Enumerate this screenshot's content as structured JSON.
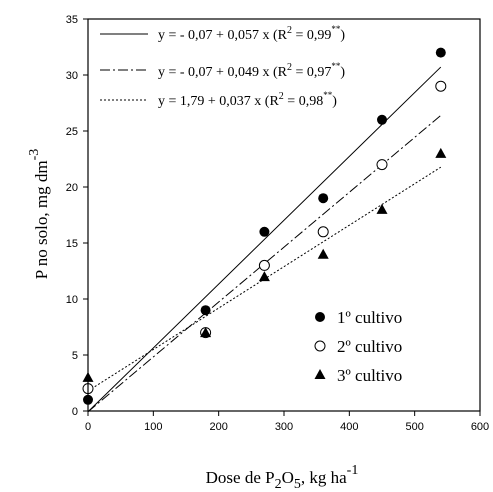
{
  "chart_data": {
    "type": "scatter",
    "xlabel": {
      "pre": "Dose de P",
      "sub1": "2",
      "mid": "O",
      "sub2": "5",
      "post": ", kg ha",
      "sup": "-1"
    },
    "ylabel": {
      "main": "P no solo, mg dm",
      "sup": "-3"
    },
    "xlim": [
      0,
      600
    ],
    "ylim": [
      0,
      35
    ],
    "xticks": [
      0,
      100,
      200,
      300,
      400,
      500,
      600
    ],
    "yticks": [
      0,
      5,
      10,
      15,
      20,
      25,
      30,
      35
    ],
    "x": [
      0,
      180,
      270,
      360,
      450,
      540
    ],
    "series": [
      {
        "name": "1º cultivo",
        "marker": "filled-circle",
        "line": "solid",
        "values": [
          1,
          9,
          16,
          19,
          26,
          32
        ],
        "fit": {
          "intercept": -0.07,
          "slope": 0.057
        },
        "equation": {
          "main": "y = - 0,07 + 0,057 x (R",
          "sq": "2",
          "mid": " = 0,99",
          "sig": "**",
          "end": ")"
        }
      },
      {
        "name": "2º cultivo",
        "marker": "open-circle",
        "line": "dash-dot",
        "values": [
          2,
          7,
          13,
          16,
          22,
          29
        ],
        "fit": {
          "intercept": -0.07,
          "slope": 0.049
        },
        "equation": {
          "main": "y = - 0,07 + 0,049 x (R",
          "sq": "2",
          "mid": " = 0,97",
          "sig": "**",
          "end": ")"
        }
      },
      {
        "name": "3º cultivo",
        "marker": "filled-triangle",
        "line": "dotted",
        "values": [
          3,
          7,
          12,
          14,
          18,
          23
        ],
        "fit": {
          "intercept": 1.79,
          "slope": 0.037
        },
        "equation": {
          "main": "y = 1,79 + 0,037 x (R",
          "sq": "2",
          "mid": " = 0,98",
          "sig": "**",
          "end": ")"
        }
      }
    ],
    "legend_position": "bottom-right",
    "grid": false
  }
}
